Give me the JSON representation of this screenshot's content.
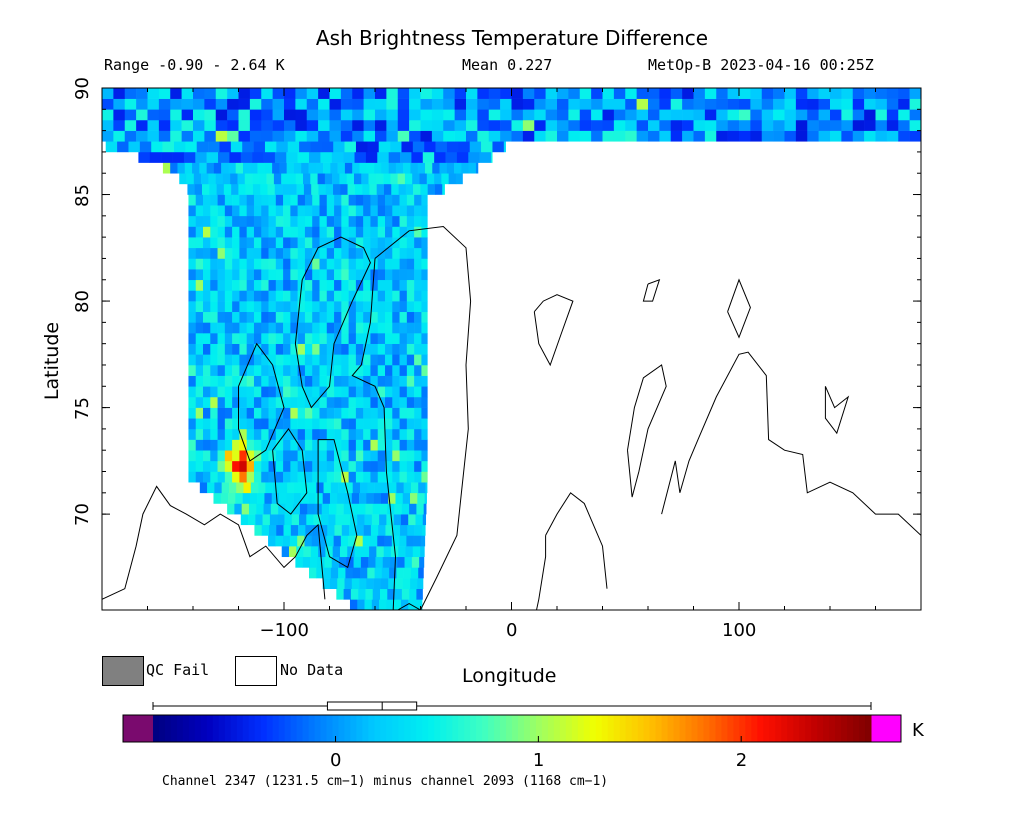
{
  "title": "Ash Brightness Temperature Difference",
  "stats": {
    "range": "Range -0.90 - 2.64 K",
    "mean": "Mean 0.227",
    "satellite": "MetOp-B 2023-04-16 00:25Z"
  },
  "axes": {
    "xlabel": "Longitude",
    "ylabel": "Latitude",
    "xticks": [
      {
        "value": -100,
        "label": "−100"
      },
      {
        "value": 0,
        "label": "0"
      },
      {
        "value": 100,
        "label": "100"
      }
    ],
    "yticks": [
      {
        "value": 70,
        "label": "70"
      },
      {
        "value": 75,
        "label": "75"
      },
      {
        "value": 80,
        "label": "80"
      },
      {
        "value": 85,
        "label": "85"
      },
      {
        "value": 90,
        "label": "90"
      }
    ],
    "xlim": [
      -180,
      180
    ],
    "ylim": [
      65.5,
      90
    ]
  },
  "legend": {
    "qc_fail": "QC Fail",
    "no_data": "No Data",
    "qc_color": "#808080",
    "nodata_color": "#ffffff"
  },
  "colorbar": {
    "unit": "K",
    "min": -0.9,
    "max": 2.64,
    "ticks": [
      {
        "value": 0,
        "label": "0"
      },
      {
        "value": 1,
        "label": "1"
      },
      {
        "value": 2,
        "label": "2"
      }
    ],
    "under_color": "#7a0a6e",
    "over_color": "#ff00ff",
    "colors": [
      "#000080",
      "#0000c0",
      "#0030ff",
      "#0080ff",
      "#00c8ff",
      "#00f0f0",
      "#40ffc0",
      "#a0ff60",
      "#f0ff00",
      "#ffc000",
      "#ff7000",
      "#ff1000",
      "#c00000",
      "#800000"
    ],
    "boxplot": {
      "whisker_low": -0.9,
      "q1": -0.04,
      "median": 0.23,
      "q3": 0.4,
      "whisker_high": 2.64
    }
  },
  "channel_note": "Channel 2347 (1231.5 cm−1) minus channel 2093 (1168 cm−1)",
  "map": {
    "type": "heatmap",
    "projection": "lon-lat",
    "swath_lon_range": [
      -145,
      -35
    ],
    "swath_lat_range": [
      65.5,
      90
    ],
    "hotspot": {
      "lon": -120,
      "lat": 72,
      "max_value": 2.64
    }
  }
}
